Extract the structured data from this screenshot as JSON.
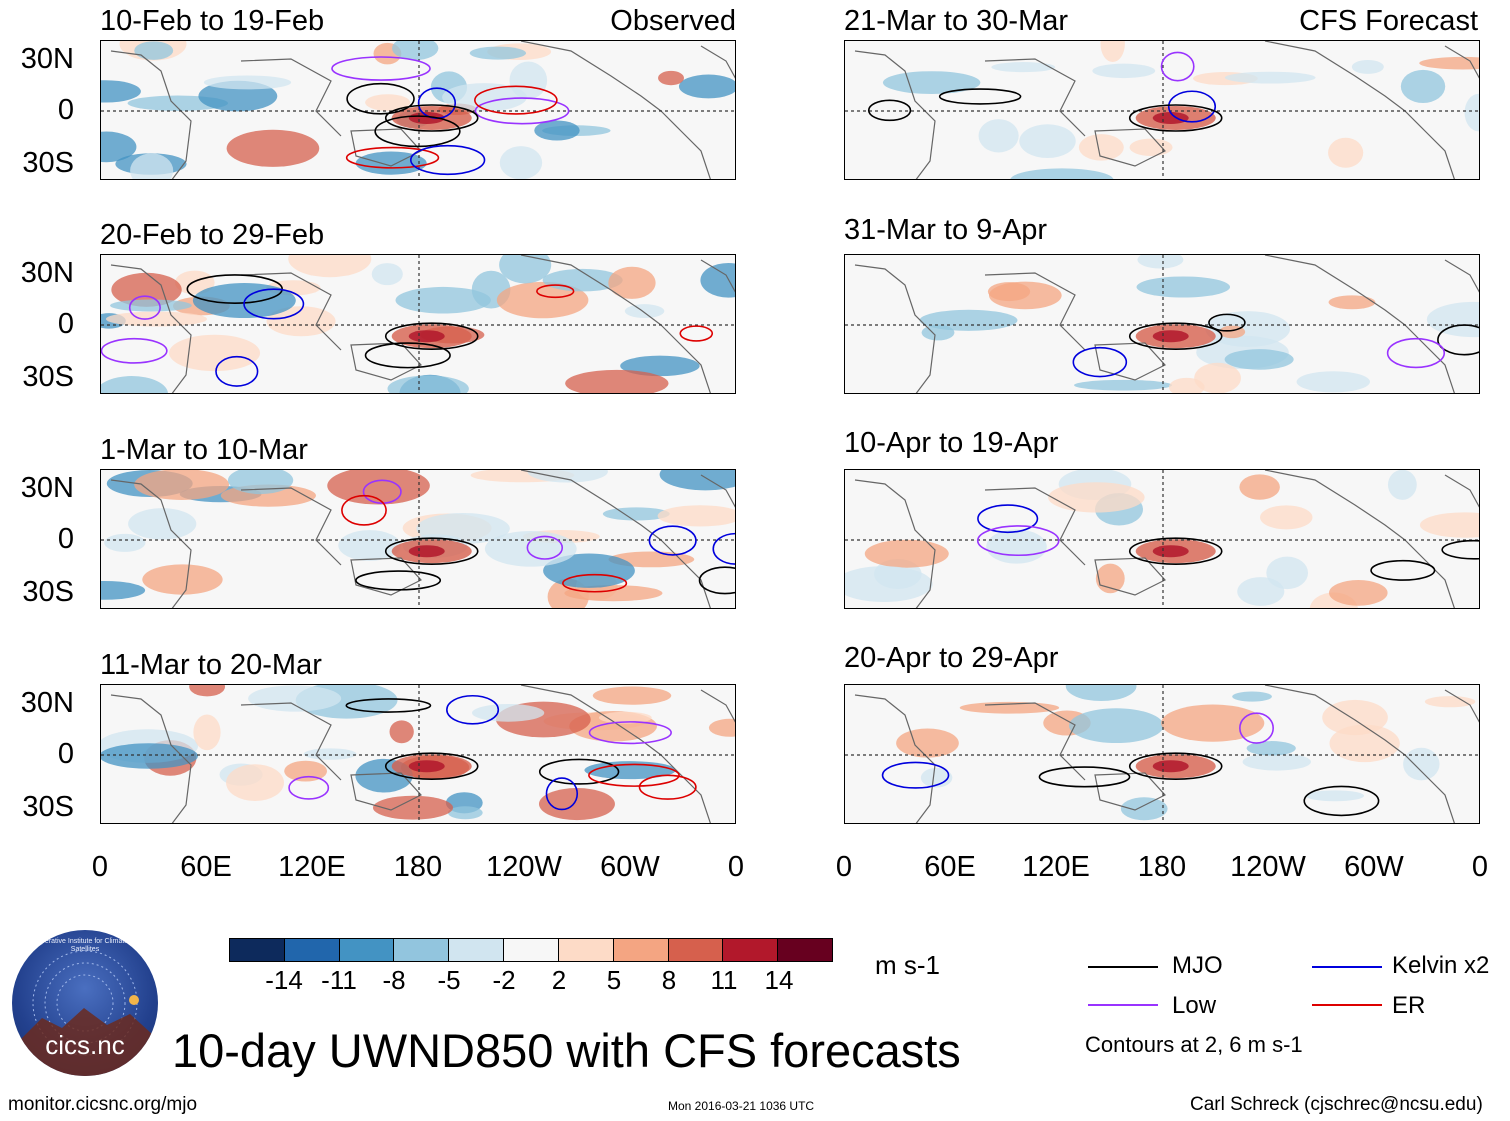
{
  "title": "10-day UWND850 with CFS forecasts",
  "logo_text": "cics.nc",
  "logo_ring_text": "Cooperative Institute for Climate and Satellites",
  "footer": {
    "left": "monitor.cicsnc.org/mjo",
    "center": "Mon 2016-03-21 1036 UTC",
    "right": "Carl Schreck (cjschrec@ncsu.edu)"
  },
  "columns": [
    {
      "tag": "Observed"
    },
    {
      "tag": "CFS Forecast"
    }
  ],
  "panels": [
    {
      "period": "10-Feb to 19-Feb"
    },
    {
      "period": "20-Feb to 29-Feb"
    },
    {
      "period": "1-Mar to 10-Mar"
    },
    {
      "period": "11-Mar to 20-Mar"
    },
    {
      "period": "21-Mar to 30-Mar"
    },
    {
      "period": "31-Mar to 9-Apr"
    },
    {
      "period": "10-Apr to 19-Apr"
    },
    {
      "period": "20-Apr to 29-Apr"
    }
  ],
  "lat_ticks": [
    "30N",
    "0",
    "30S"
  ],
  "lon_ticks": [
    "0",
    "60E",
    "120E",
    "180",
    "120W",
    "60W",
    "0"
  ],
  "colorbar": {
    "unit": "m s-1",
    "labels": [
      "-14",
      "-11",
      "-8",
      "-5",
      "-2",
      "2",
      "5",
      "8",
      "11",
      "14"
    ],
    "colors": [
      "#0d2a5c",
      "#2166ac",
      "#4393c3",
      "#92c5de",
      "#d1e5f0",
      "#f7f7f7",
      "#fddbc7",
      "#f4a582",
      "#d6604d",
      "#b2182b",
      "#67001f"
    ]
  },
  "legend": {
    "items": [
      {
        "label": "MJO",
        "color": "#000000"
      },
      {
        "label": "Kelvin x2",
        "color": "#0000dd"
      },
      {
        "label": "Low",
        "color": "#9933ff"
      },
      {
        "label": "ER",
        "color": "#dd0000"
      }
    ],
    "note": "Contours at 2, 6 m s-1"
  }
}
